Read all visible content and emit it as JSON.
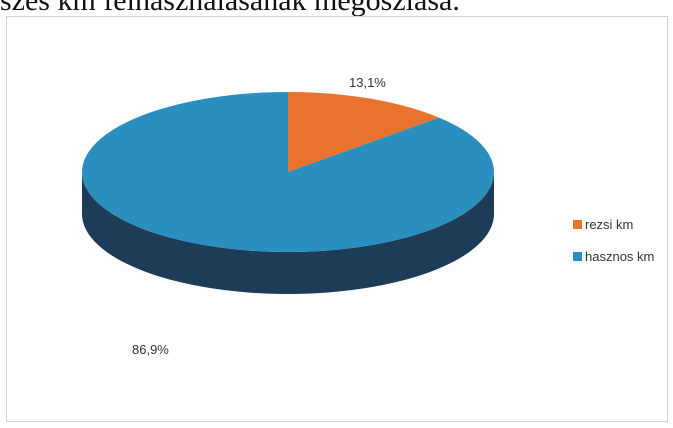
{
  "title": "szes km felhasználásának megoszlása.",
  "colors": {
    "rezsi": "#e8732c",
    "rezsi_side": "#b4541c",
    "hasznos": "#2a8fbf",
    "hasznos_side": "#1c3c57"
  },
  "chart_data": {
    "type": "pie",
    "slices": [
      {
        "name": "rezsi km",
        "value": 13.1,
        "label": "13,1%"
      },
      {
        "name": "hasznos km",
        "value": 86.9,
        "label": "86,9%"
      }
    ],
    "legend_position": "right"
  }
}
